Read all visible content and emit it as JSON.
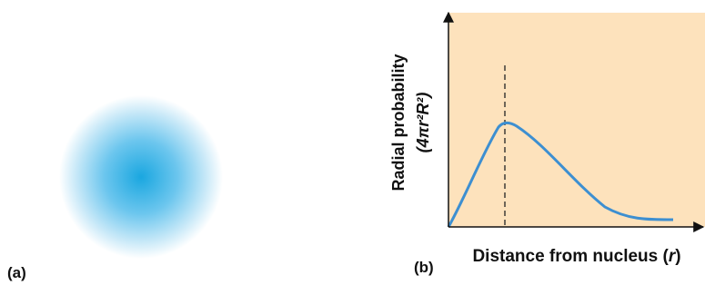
{
  "panels": [
    {
      "label": "(a)"
    },
    {
      "label": "(b)",
      "y_label": {
        "line1": "Radial probability",
        "line2": "(4πr²R²)"
      },
      "x_label": {
        "before": "Distance from nucleus (",
        "variable": "r",
        "after": ")"
      }
    }
  ]
}
